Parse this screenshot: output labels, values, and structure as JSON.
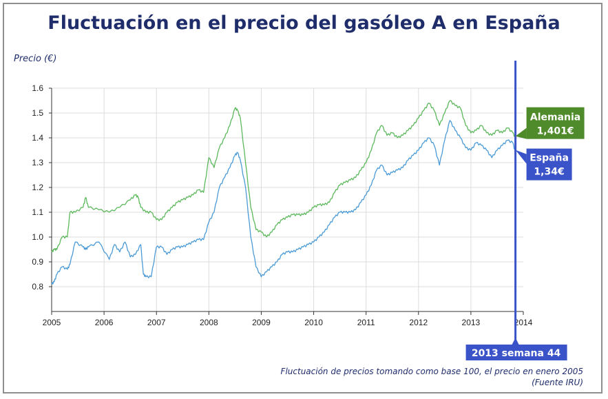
{
  "title": "Fluctuación en el precio del gasóleo A en España",
  "ylabel": "Precio (€)",
  "caption": {
    "line1": "Fluctuación de precios tomando como base 100, el precio en enero 2005",
    "line2": "(Fuente IRU)"
  },
  "colors": {
    "alemania": "#5cb85c",
    "espana": "#4a9ad6",
    "alemania_box": "#4f8b2b",
    "espana_box": "#3a53c9",
    "cursor": "#3a53c9",
    "title": "#1f2d6b"
  },
  "chart_data": {
    "type": "line",
    "title": "Fluctuación en el precio del gasóleo A en España",
    "xlabel": "",
    "ylabel": "Precio (€)",
    "xlim": [
      2005,
      2014
    ],
    "ylim": [
      0.7,
      1.6
    ],
    "xticks": [
      "2005",
      "2006",
      "2007",
      "2008",
      "2009",
      "2010",
      "2011",
      "2012",
      "2013",
      "2014"
    ],
    "yticks": [
      "0.8",
      "0.9",
      "1.0",
      "1.1",
      "1.2",
      "1.3",
      "1.4",
      "1.5",
      "1.6"
    ],
    "grid": true,
    "series": [
      {
        "name": "Alemania",
        "color": "#5cb85c",
        "x": [
          2005.0,
          2005.05,
          2005.1,
          2005.2,
          2005.3,
          2005.35,
          2005.45,
          2005.6,
          2005.65,
          2005.7,
          2005.9,
          2006.1,
          2006.3,
          2006.5,
          2006.6,
          2006.65,
          2006.7,
          2006.8,
          2006.9,
          2007.0,
          2007.1,
          2007.2,
          2007.3,
          2007.4,
          2007.5,
          2007.6,
          2007.7,
          2007.8,
          2007.9,
          2008.0,
          2008.1,
          2008.2,
          2008.3,
          2008.4,
          2008.5,
          2008.55,
          2008.6,
          2008.7,
          2008.8,
          2008.9,
          2009.0,
          2009.1,
          2009.2,
          2009.3,
          2009.4,
          2009.5,
          2009.6,
          2009.7,
          2009.8,
          2009.9,
          2010.0,
          2010.1,
          2010.2,
          2010.3,
          2010.4,
          2010.5,
          2010.6,
          2010.7,
          2010.8,
          2010.9,
          2011.0,
          2011.1,
          2011.2,
          2011.3,
          2011.4,
          2011.5,
          2011.6,
          2011.7,
          2011.8,
          2011.9,
          2012.0,
          2012.1,
          2012.2,
          2012.3,
          2012.4,
          2012.5,
          2012.6,
          2012.7,
          2012.8,
          2012.9,
          2013.0,
          2013.1,
          2013.2,
          2013.3,
          2013.4,
          2013.5,
          2013.6,
          2013.7,
          2013.8,
          2013.85
        ],
        "values": [
          0.94,
          0.95,
          0.95,
          1.0,
          1.0,
          1.1,
          1.1,
          1.12,
          1.16,
          1.12,
          1.11,
          1.1,
          1.12,
          1.15,
          1.17,
          1.16,
          1.12,
          1.1,
          1.1,
          1.07,
          1.07,
          1.1,
          1.12,
          1.14,
          1.15,
          1.16,
          1.17,
          1.19,
          1.18,
          1.32,
          1.28,
          1.36,
          1.4,
          1.45,
          1.52,
          1.51,
          1.48,
          1.3,
          1.12,
          1.03,
          1.02,
          1.0,
          1.02,
          1.05,
          1.07,
          1.08,
          1.09,
          1.09,
          1.09,
          1.1,
          1.12,
          1.13,
          1.13,
          1.14,
          1.18,
          1.21,
          1.22,
          1.23,
          1.24,
          1.27,
          1.3,
          1.35,
          1.42,
          1.45,
          1.41,
          1.42,
          1.4,
          1.41,
          1.43,
          1.45,
          1.48,
          1.51,
          1.54,
          1.51,
          1.45,
          1.5,
          1.55,
          1.53,
          1.52,
          1.45,
          1.42,
          1.43,
          1.45,
          1.42,
          1.41,
          1.43,
          1.42,
          1.44,
          1.42,
          1.401
        ]
      },
      {
        "name": "España",
        "color": "#4a9ad6",
        "x": [
          2005.0,
          2005.05,
          2005.1,
          2005.2,
          2005.3,
          2005.35,
          2005.45,
          2005.6,
          2005.65,
          2005.7,
          2005.9,
          2006.1,
          2006.2,
          2006.3,
          2006.4,
          2006.5,
          2006.6,
          2006.7,
          2006.75,
          2006.8,
          2006.9,
          2007.0,
          2007.1,
          2007.2,
          2007.3,
          2007.4,
          2007.5,
          2007.6,
          2007.7,
          2007.8,
          2007.9,
          2008.0,
          2008.1,
          2008.2,
          2008.3,
          2008.4,
          2008.5,
          2008.55,
          2008.6,
          2008.7,
          2008.8,
          2008.9,
          2009.0,
          2009.1,
          2009.2,
          2009.3,
          2009.4,
          2009.5,
          2009.6,
          2009.7,
          2009.8,
          2009.9,
          2010.0,
          2010.1,
          2010.2,
          2010.3,
          2010.4,
          2010.5,
          2010.6,
          2010.7,
          2010.8,
          2010.9,
          2011.0,
          2011.1,
          2011.2,
          2011.3,
          2011.4,
          2011.5,
          2011.6,
          2011.7,
          2011.8,
          2011.9,
          2012.0,
          2012.1,
          2012.2,
          2012.3,
          2012.4,
          2012.5,
          2012.6,
          2012.7,
          2012.8,
          2012.9,
          2013.0,
          2013.1,
          2013.2,
          2013.3,
          2013.4,
          2013.5,
          2013.6,
          2013.7,
          2013.8,
          2013.85
        ],
        "values": [
          0.81,
          0.82,
          0.85,
          0.88,
          0.87,
          0.89,
          0.98,
          0.96,
          0.95,
          0.96,
          0.98,
          0.91,
          0.97,
          0.94,
          0.98,
          0.92,
          0.93,
          0.97,
          0.85,
          0.84,
          0.84,
          0.96,
          0.96,
          0.93,
          0.95,
          0.96,
          0.96,
          0.97,
          0.98,
          0.99,
          0.99,
          1.06,
          1.1,
          1.2,
          1.24,
          1.28,
          1.33,
          1.34,
          1.31,
          1.2,
          1.0,
          0.88,
          0.84,
          0.86,
          0.88,
          0.9,
          0.93,
          0.94,
          0.94,
          0.95,
          0.96,
          0.97,
          0.98,
          1.0,
          1.02,
          1.05,
          1.08,
          1.1,
          1.1,
          1.1,
          1.11,
          1.14,
          1.17,
          1.21,
          1.27,
          1.29,
          1.25,
          1.26,
          1.27,
          1.28,
          1.31,
          1.33,
          1.35,
          1.38,
          1.4,
          1.37,
          1.29,
          1.39,
          1.47,
          1.43,
          1.4,
          1.36,
          1.35,
          1.38,
          1.37,
          1.35,
          1.32,
          1.35,
          1.37,
          1.39,
          1.38,
          1.34
        ]
      }
    ],
    "annotations": [
      {
        "series": "Alemania",
        "label": "Alemania",
        "value_text": "1,401€"
      },
      {
        "series": "España",
        "label": "España",
        "value_text": "1,34€"
      },
      {
        "label": "2013 semana 44",
        "x": 2013.85
      }
    ]
  }
}
